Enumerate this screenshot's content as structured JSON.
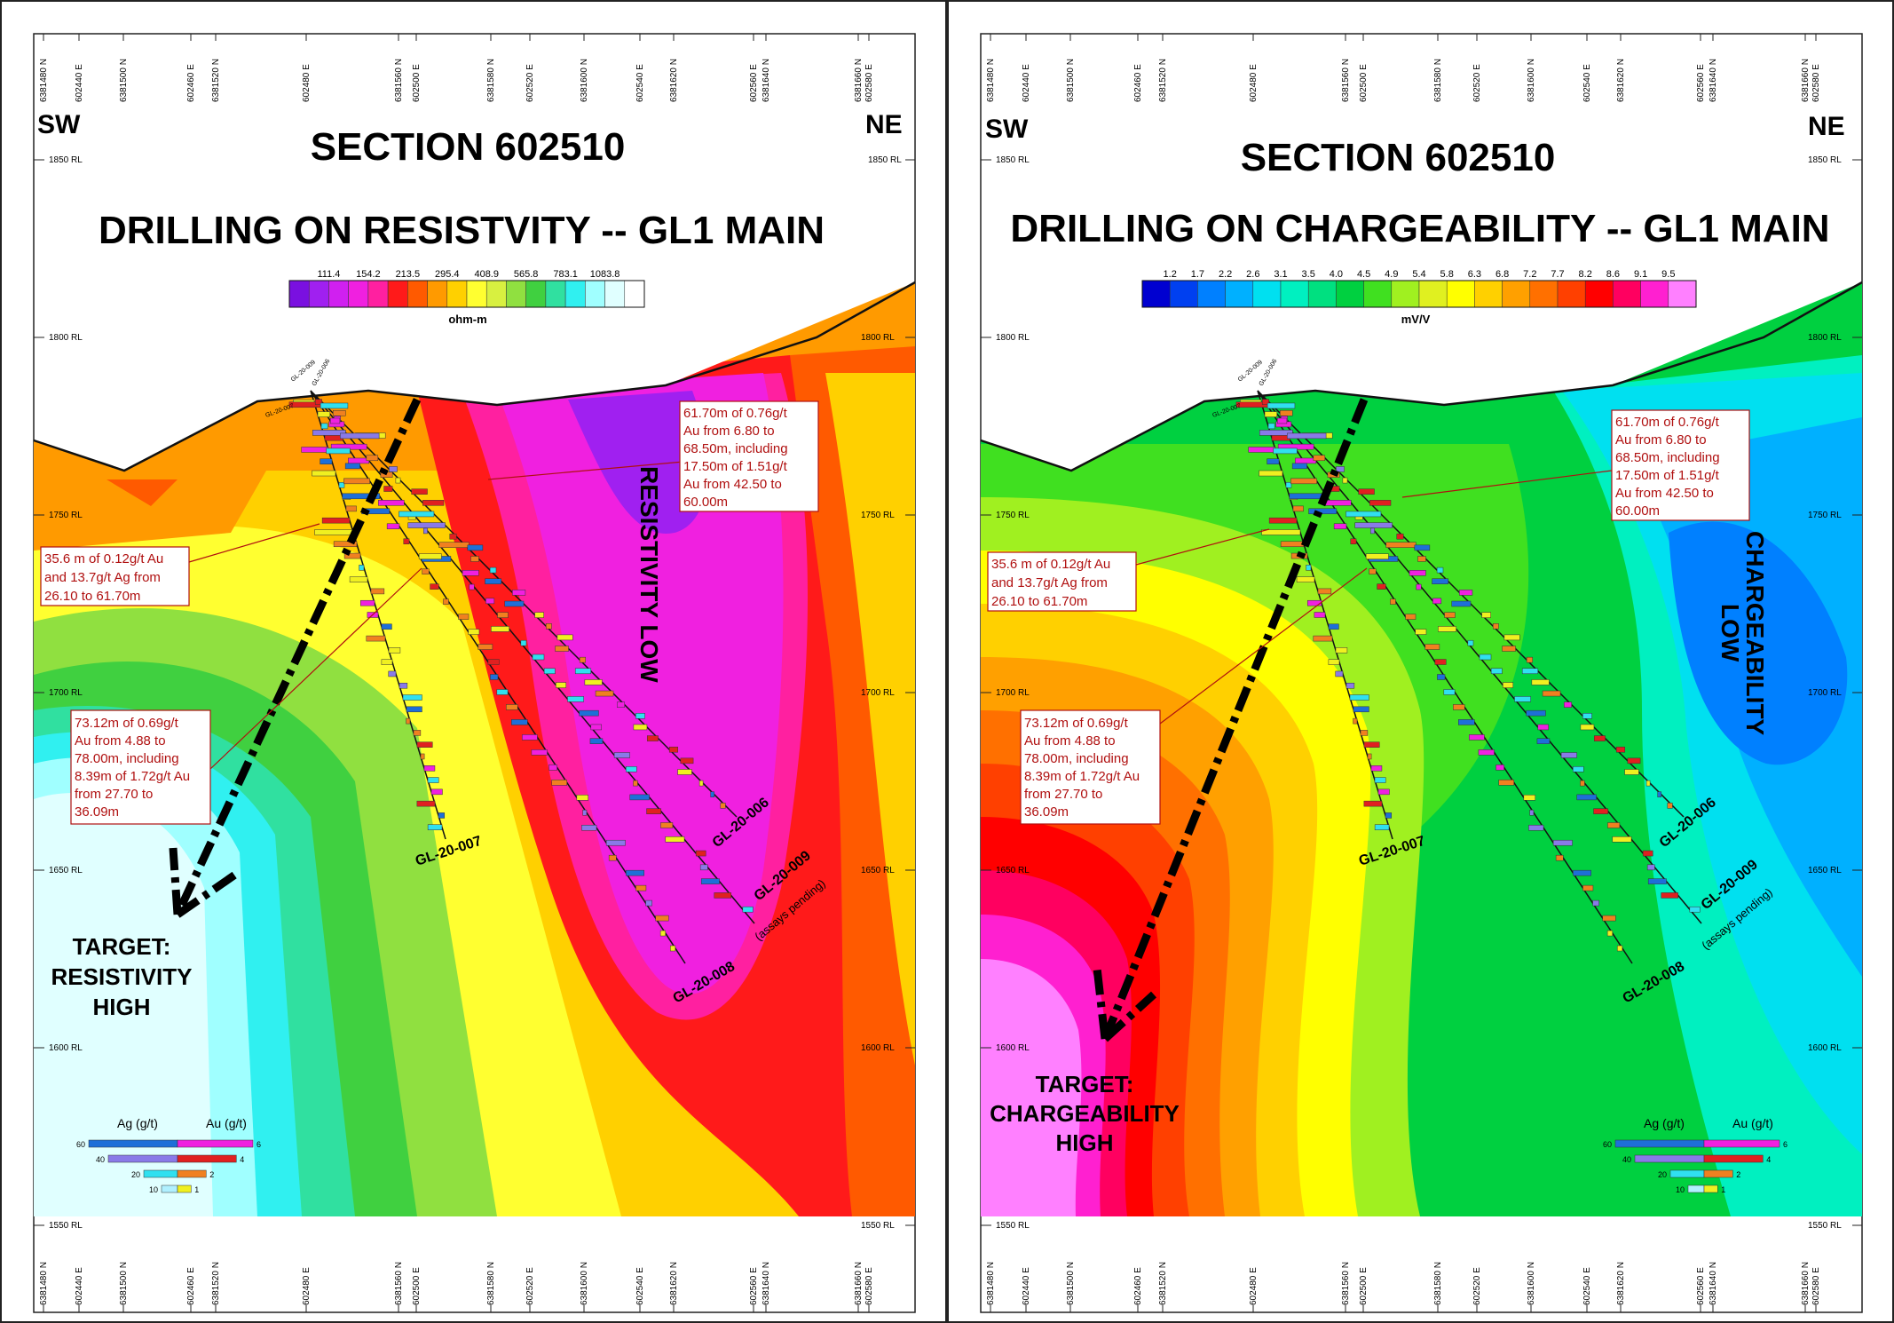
{
  "panels": [
    {
      "id": "resistivity",
      "sw": "SW",
      "ne": "NE",
      "section_title": "SECTION 602510",
      "subtitle": "DRILLING ON RESISTVITY -- GL1 MAIN",
      "scale_ticks": [
        "111.4",
        "154.2",
        "213.5",
        "295.4",
        "408.9",
        "565.8",
        "783.1",
        "1083.8"
      ],
      "scale_unit": "ohm-m",
      "scale_colors": [
        "#7a10e0",
        "#a020f0",
        "#d020f0",
        "#f020e0",
        "#ff20a0",
        "#ff1a1a",
        "#ff5a00",
        "#ff9a00",
        "#ffd000",
        "#ffff30",
        "#d8f040",
        "#90e040",
        "#40d040",
        "#30e0a0",
        "#30f0f0",
        "#a0ffff",
        "#e0ffff",
        "#ffffff"
      ],
      "anomaly_label": "RESISTIVITY LOW",
      "target_label": [
        "TARGET:",
        "RESISTIVITY",
        "HIGH"
      ],
      "annotations": {
        "ann1": [
          "61.70m of 0.76g/t",
          "Au from 6.80 to",
          "68.50m, including",
          "17.50m of 1.51g/t",
          "Au from 42.50 to",
          "60.00m"
        ],
        "ann2": [
          "35.6 m of 0.12g/t Au",
          "and 13.7g/t Ag from",
          "26.10 to 61.70m"
        ],
        "ann3": [
          "73.12m of 0.69g/t",
          "Au from 4.88 to",
          "78.00m, including",
          "8.39m of 1.72g/t Au",
          "from 27.70 to",
          "36.09m"
        ]
      },
      "top_coords": [
        "6381480 N",
        "602440 E",
        "6381500 N",
        "602460 E",
        "6381520 N",
        "602480 E",
        "6381560 N",
        "602500 E",
        "6381580 N",
        "602520 E",
        "6381600 N",
        "602540 E",
        "6381620 N",
        "602560 E",
        "6381640 N",
        "6381660 N",
        "602580 E"
      ],
      "bottom_coords": [
        "6381480 N",
        "602440 E",
        "6381500 N",
        "602460 E",
        "6381520 N",
        "602480 E",
        "6381560 N",
        "602500 E",
        "6381580 N",
        "602520 E",
        "6381600 N",
        "602540 E",
        "6381620 N",
        "602560 E",
        "6381640 N",
        "6381660 N",
        "602580 E"
      ]
    },
    {
      "id": "chargeability",
      "sw": "SW",
      "ne": "NE",
      "section_title": "SECTION 602510",
      "subtitle": "DRILLING ON CHARGEABILITY -- GL1 MAIN",
      "scale_ticks": [
        "1.2",
        "1.7",
        "2.2",
        "2.6",
        "3.1",
        "3.5",
        "4.0",
        "4.5",
        "4.9",
        "5.4",
        "5.8",
        "6.3",
        "6.8",
        "7.2",
        "7.7",
        "8.2",
        "8.6",
        "9.1",
        "9.5"
      ],
      "scale_unit": "mV/V",
      "scale_colors": [
        "#0000d0",
        "#0040f0",
        "#0080ff",
        "#00b0ff",
        "#00e0f0",
        "#00f0c0",
        "#00e080",
        "#00d040",
        "#40e020",
        "#a0f020",
        "#e0f020",
        "#ffff00",
        "#ffd000",
        "#ffa000",
        "#ff7000",
        "#ff4000",
        "#ff0000",
        "#ff0060",
        "#ff20d0",
        "#ff80ff"
      ],
      "anomaly_label": [
        "CHARGEABILITY",
        "LOW"
      ],
      "target_label": [
        "TARGET:",
        "CHARGEABILITY",
        "HIGH"
      ],
      "annotations": {
        "ann1": [
          "61.70m of 0.76g/t",
          "Au from 6.80 to",
          "68.50m, including",
          "17.50m of 1.51g/t",
          "Au from 42.50 to",
          "60.00m"
        ],
        "ann2": [
          "35.6 m of 0.12g/t Au",
          "and 13.7g/t Ag from",
          "26.10 to 61.70m"
        ],
        "ann3": [
          "73.12m of 0.69g/t",
          "Au from 4.88 to",
          "78.00m, including",
          "8.39m of 1.72g/t Au",
          "from 27.70 to",
          "36.09m"
        ]
      },
      "top_coords": [
        "6381480 N",
        "602440 E",
        "6381500 N",
        "602460 E",
        "6381520 N",
        "602480 E",
        "6381560 N",
        "602500 E",
        "6381580 N",
        "602520 E",
        "6381600 N",
        "602540 E",
        "6381620 N",
        "602560 E",
        "6381640 N",
        "6381660 N",
        "602580 E"
      ],
      "bottom_coords": [
        "6381480 N",
        "602440 E",
        "6381500 N",
        "602460 E",
        "6381520 N",
        "602480 E",
        "6381560 N",
        "602500 E",
        "6381580 N",
        "602520 E",
        "6381600 N",
        "602540 E",
        "6381620 N",
        "602560 E",
        "6381640 N",
        "6381660 N",
        "602580 E"
      ]
    }
  ],
  "elevations": [
    "1850 RL",
    "1800 RL",
    "1750 RL",
    "1700 RL",
    "1650 RL",
    "1600 RL",
    "1550 RL"
  ],
  "drillholes": [
    "GL-20-006",
    "GL-20-007",
    "GL-20-008",
    "GL-20-009",
    "(assays pending)"
  ],
  "collar_labels": [
    "GL-20-006",
    "GL-20-007",
    "GL-20-008",
    "GL-20-009"
  ],
  "legend": {
    "ag_title": "Ag (g/t)",
    "au_title": "Au (g/t)",
    "ag_values": [
      "60",
      "40",
      "20",
      "10"
    ],
    "au_values": [
      "6",
      "4",
      "2",
      "1"
    ],
    "ag_colors": [
      "#1e6fd8",
      "#8a7ae8",
      "#30e0f0",
      "#b0f0ff"
    ],
    "au_colors": [
      "#f020e0",
      "#e02020",
      "#f08020",
      "#f0f020"
    ]
  }
}
